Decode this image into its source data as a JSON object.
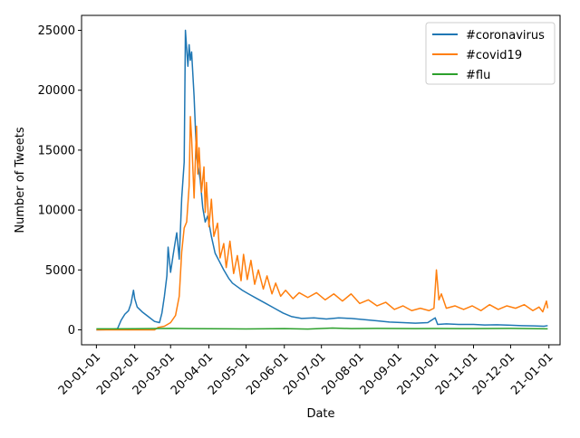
{
  "chart_data": {
    "type": "line",
    "xlabel": "Date",
    "ylabel": "Number of Tweets",
    "x_ticks": [
      "20-01-01",
      "20-02-01",
      "20-03-01",
      "20-04-01",
      "20-05-01",
      "20-06-01",
      "20-07-01",
      "20-08-01",
      "20-09-01",
      "20-10-01",
      "20-11-01",
      "20-12-01",
      "21-01-01"
    ],
    "y_ticks": [
      0,
      5000,
      10000,
      15000,
      20000,
      25000
    ],
    "xlim": [
      "2019-12-20",
      "2021-01-10"
    ],
    "ylim": [
      -1250,
      26250
    ],
    "grid": false,
    "legend_position": "top-right",
    "series": [
      {
        "name": "#coronavirus",
        "color": "#1f77b4",
        "points": [
          [
            "2020-01-01",
            0
          ],
          [
            "2020-01-10",
            20
          ],
          [
            "2020-01-18",
            80
          ],
          [
            "2020-01-21",
            800
          ],
          [
            "2020-01-24",
            1300
          ],
          [
            "2020-01-27",
            1600
          ],
          [
            "2020-01-29",
            2200
          ],
          [
            "2020-01-31",
            3300
          ],
          [
            "2020-02-01",
            2600
          ],
          [
            "2020-02-03",
            1900
          ],
          [
            "2020-02-07",
            1500
          ],
          [
            "2020-02-12",
            1100
          ],
          [
            "2020-02-17",
            700
          ],
          [
            "2020-02-21",
            600
          ],
          [
            "2020-02-23",
            1400
          ],
          [
            "2020-02-25",
            2800
          ],
          [
            "2020-02-27",
            4500
          ],
          [
            "2020-02-28",
            6900
          ],
          [
            "2020-03-01",
            4800
          ],
          [
            "2020-03-03",
            6200
          ],
          [
            "2020-03-05",
            7500
          ],
          [
            "2020-03-06",
            8100
          ],
          [
            "2020-03-08",
            5900
          ],
          [
            "2020-03-10",
            11000
          ],
          [
            "2020-03-12",
            14000
          ],
          [
            "2020-03-13",
            25000
          ],
          [
            "2020-03-15",
            22000
          ],
          [
            "2020-03-16",
            23800
          ],
          [
            "2020-03-17",
            22500
          ],
          [
            "2020-03-18",
            23200
          ],
          [
            "2020-03-20",
            19500
          ],
          [
            "2020-03-22",
            14500
          ],
          [
            "2020-03-25",
            12500
          ],
          [
            "2020-03-27",
            10200
          ],
          [
            "2020-03-29",
            9000
          ],
          [
            "2020-03-31",
            9500
          ],
          [
            "2020-04-03",
            7800
          ],
          [
            "2020-04-06",
            6400
          ],
          [
            "2020-04-10",
            5600
          ],
          [
            "2020-04-13",
            5000
          ],
          [
            "2020-04-17",
            4300
          ],
          [
            "2020-04-20",
            3900
          ],
          [
            "2020-04-24",
            3600
          ],
          [
            "2020-04-28",
            3300
          ],
          [
            "2020-05-03",
            3000
          ],
          [
            "2020-05-10",
            2600
          ],
          [
            "2020-05-17",
            2200
          ],
          [
            "2020-05-24",
            1800
          ],
          [
            "2020-05-31",
            1400
          ],
          [
            "2020-06-07",
            1100
          ],
          [
            "2020-06-15",
            950
          ],
          [
            "2020-06-25",
            1000
          ],
          [
            "2020-07-05",
            900
          ],
          [
            "2020-07-15",
            1000
          ],
          [
            "2020-07-25",
            950
          ],
          [
            "2020-08-05",
            850
          ],
          [
            "2020-08-15",
            750
          ],
          [
            "2020-08-25",
            650
          ],
          [
            "2020-09-05",
            600
          ],
          [
            "2020-09-15",
            550
          ],
          [
            "2020-09-25",
            600
          ],
          [
            "2020-10-01",
            1000
          ],
          [
            "2020-10-03",
            450
          ],
          [
            "2020-10-10",
            500
          ],
          [
            "2020-10-20",
            450
          ],
          [
            "2020-11-01",
            450
          ],
          [
            "2020-11-10",
            400
          ],
          [
            "2020-11-20",
            420
          ],
          [
            "2020-12-01",
            380
          ],
          [
            "2020-12-10",
            350
          ],
          [
            "2020-12-20",
            330
          ],
          [
            "2020-12-28",
            300
          ],
          [
            "2020-12-31",
            350
          ]
        ]
      },
      {
        "name": "#covid19",
        "color": "#ff7f0e",
        "points": [
          [
            "2020-01-01",
            0
          ],
          [
            "2020-02-10",
            0
          ],
          [
            "2020-02-17",
            0
          ],
          [
            "2020-02-20",
            200
          ],
          [
            "2020-02-25",
            300
          ],
          [
            "2020-03-01",
            600
          ],
          [
            "2020-03-05",
            1200
          ],
          [
            "2020-03-08",
            2800
          ],
          [
            "2020-03-10",
            6500
          ],
          [
            "2020-03-12",
            8500
          ],
          [
            "2020-03-14",
            9000
          ],
          [
            "2020-03-16",
            12000
          ],
          [
            "2020-03-17",
            17800
          ],
          [
            "2020-03-18",
            16000
          ],
          [
            "2020-03-20",
            11000
          ],
          [
            "2020-03-22",
            17000
          ],
          [
            "2020-03-23",
            13000
          ],
          [
            "2020-03-24",
            15200
          ],
          [
            "2020-03-26",
            11500
          ],
          [
            "2020-03-28",
            13600
          ],
          [
            "2020-03-29",
            9800
          ],
          [
            "2020-03-30",
            12300
          ],
          [
            "2020-04-01",
            8600
          ],
          [
            "2020-04-03",
            10900
          ],
          [
            "2020-04-05",
            7800
          ],
          [
            "2020-04-08",
            8900
          ],
          [
            "2020-04-10",
            6000
          ],
          [
            "2020-04-13",
            7200
          ],
          [
            "2020-04-15",
            5200
          ],
          [
            "2020-04-18",
            7400
          ],
          [
            "2020-04-21",
            4700
          ],
          [
            "2020-04-24",
            6200
          ],
          [
            "2020-04-27",
            4100
          ],
          [
            "2020-04-29",
            6300
          ],
          [
            "2020-05-02",
            4200
          ],
          [
            "2020-05-05",
            5800
          ],
          [
            "2020-05-08",
            3800
          ],
          [
            "2020-05-11",
            5000
          ],
          [
            "2020-05-15",
            3400
          ],
          [
            "2020-05-18",
            4500
          ],
          [
            "2020-05-22",
            3000
          ],
          [
            "2020-05-25",
            3900
          ],
          [
            "2020-05-29",
            2800
          ],
          [
            "2020-06-02",
            3300
          ],
          [
            "2020-06-08",
            2600
          ],
          [
            "2020-06-13",
            3100
          ],
          [
            "2020-06-20",
            2700
          ],
          [
            "2020-06-27",
            3100
          ],
          [
            "2020-07-04",
            2500
          ],
          [
            "2020-07-11",
            3000
          ],
          [
            "2020-07-18",
            2400
          ],
          [
            "2020-07-25",
            3000
          ],
          [
            "2020-08-01",
            2200
          ],
          [
            "2020-08-08",
            2500
          ],
          [
            "2020-08-15",
            2000
          ],
          [
            "2020-08-22",
            2300
          ],
          [
            "2020-08-29",
            1700
          ],
          [
            "2020-09-05",
            2000
          ],
          [
            "2020-09-12",
            1600
          ],
          [
            "2020-09-19",
            1800
          ],
          [
            "2020-09-26",
            1600
          ],
          [
            "2020-09-30",
            1800
          ],
          [
            "2020-10-02",
            5000
          ],
          [
            "2020-10-04",
            2500
          ],
          [
            "2020-10-06",
            3000
          ],
          [
            "2020-10-10",
            1800
          ],
          [
            "2020-10-17",
            2000
          ],
          [
            "2020-10-24",
            1700
          ],
          [
            "2020-10-31",
            2000
          ],
          [
            "2020-11-07",
            1600
          ],
          [
            "2020-11-14",
            2100
          ],
          [
            "2020-11-21",
            1700
          ],
          [
            "2020-11-28",
            2000
          ],
          [
            "2020-12-05",
            1800
          ],
          [
            "2020-12-12",
            2100
          ],
          [
            "2020-12-19",
            1600
          ],
          [
            "2020-12-24",
            1900
          ],
          [
            "2020-12-27",
            1500
          ],
          [
            "2020-12-30",
            2400
          ],
          [
            "2020-12-31",
            1800
          ]
        ]
      },
      {
        "name": "#flu",
        "color": "#2ca02c",
        "points": [
          [
            "2020-01-01",
            80
          ],
          [
            "2020-02-01",
            90
          ],
          [
            "2020-03-01",
            120
          ],
          [
            "2020-03-15",
            100
          ],
          [
            "2020-04-01",
            90
          ],
          [
            "2020-05-01",
            70
          ],
          [
            "2020-06-01",
            100
          ],
          [
            "2020-06-20",
            60
          ],
          [
            "2020-07-10",
            150
          ],
          [
            "2020-07-25",
            100
          ],
          [
            "2020-08-15",
            120
          ],
          [
            "2020-09-15",
            100
          ],
          [
            "2020-10-01",
            110
          ],
          [
            "2020-11-01",
            100
          ],
          [
            "2020-12-01",
            120
          ],
          [
            "2020-12-31",
            80
          ]
        ]
      }
    ]
  }
}
